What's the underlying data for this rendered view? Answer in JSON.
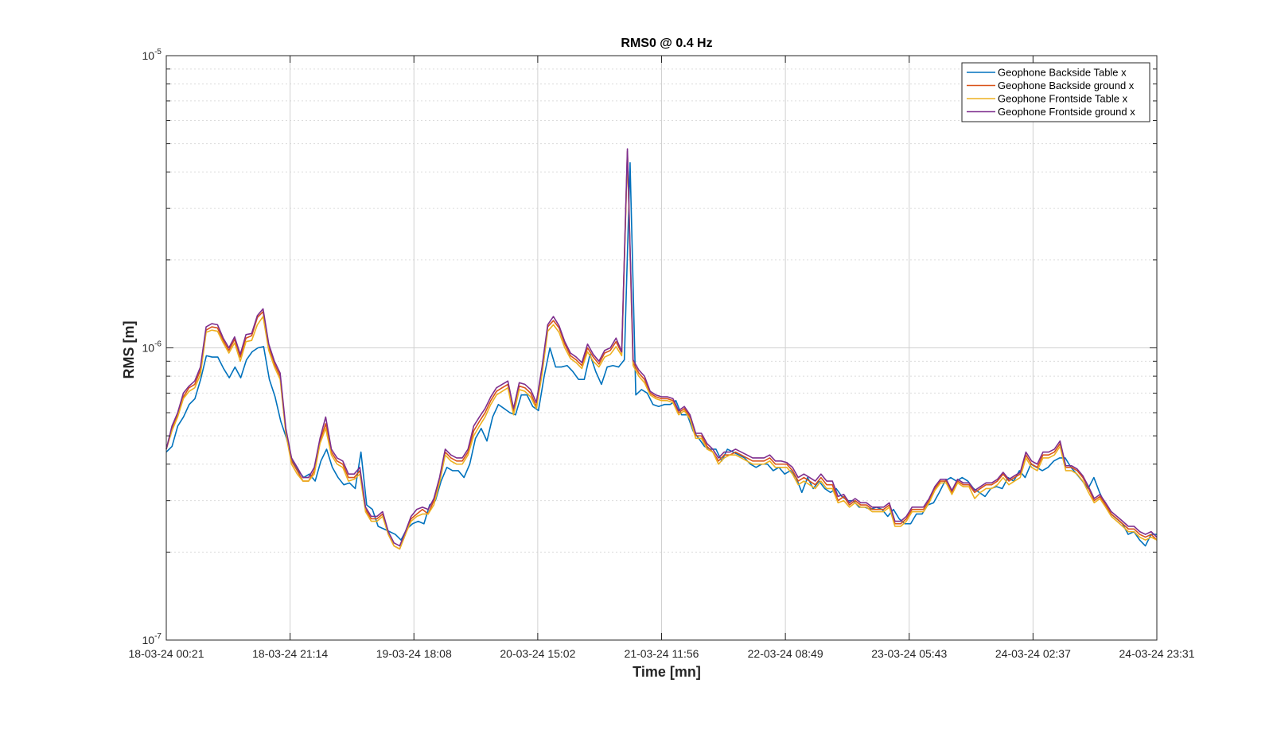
{
  "chart_data": {
    "type": "line",
    "title": "RMS0 @ 0.4 Hz",
    "xlabel": "Time [mn]",
    "ylabel": "RMS [m]",
    "yscale": "log",
    "ylim": [
      1e-07,
      1e-05
    ],
    "y_ticks": [
      {
        "value": 1e-07,
        "base": "10",
        "exp": "-7"
      },
      {
        "value": 1e-06,
        "base": "10",
        "exp": "-6"
      },
      {
        "value": 1e-05,
        "base": "10",
        "exp": "-5"
      }
    ],
    "x_ticks": [
      "18-03-24 00:21",
      "18-03-24 21:14",
      "19-03-24 18:08",
      "20-03-24 15:02",
      "21-03-24 11:56",
      "22-03-24 08:49",
      "23-03-24 05:43",
      "24-03-24 02:37",
      "24-03-24 23:31"
    ],
    "grid": true,
    "minor_grid": true,
    "legend_position": "top-right",
    "series": [
      {
        "name": "Geophone Backside Table x",
        "color": "#0072BD",
        "values": [
          4.4e-07,
          4.6e-07,
          5.4e-07,
          5.8e-07,
          6.4e-07,
          6.7e-07,
          7.8e-07,
          9.4e-07,
          9.3e-07,
          9.3e-07,
          8.5e-07,
          7.9e-07,
          8.6e-07,
          7.9e-07,
          9.1e-07,
          9.7e-07,
          1e-06,
          1.01e-06,
          7.8e-07,
          6.8e-07,
          5.6e-07,
          4.9e-07,
          4.1e-07,
          3.8e-07,
          3.6e-07,
          3.7e-07,
          3.5e-07,
          4.1e-07,
          4.5e-07,
          3.9e-07,
          3.6e-07,
          3.4e-07,
          3.45e-07,
          3.3e-07,
          4.4e-07,
          2.9e-07,
          2.8e-07,
          2.45e-07,
          2.4e-07,
          2.35e-07,
          2.3e-07,
          2.2e-07,
          2.4e-07,
          2.5e-07,
          2.55e-07,
          2.5e-07,
          2.9e-07,
          3e-07,
          3.5e-07,
          3.9e-07,
          3.8e-07,
          3.8e-07,
          3.6e-07,
          4e-07,
          4.9e-07,
          5.3e-07,
          4.8e-07,
          5.8e-07,
          6.4e-07,
          6.2e-07,
          6e-07,
          5.9e-07,
          6.9e-07,
          6.9e-07,
          6.3e-07,
          6.1e-07,
          8e-07,
          1e-06,
          8.6e-07,
          8.6e-07,
          8.7e-07,
          8.3e-07,
          7.8e-07,
          7.8e-07,
          9.5e-07,
          8.3e-07,
          7.5e-07,
          8.6e-07,
          8.7e-07,
          8.6e-07,
          9.1e-07,
          4.3e-06,
          6.9e-07,
          7.2e-07,
          7e-07,
          6.4e-07,
          6.3e-07,
          6.4e-07,
          6.4e-07,
          6.6e-07,
          5.9e-07,
          5.9e-07,
          5.2e-07,
          4.9e-07,
          4.6e-07,
          4.5e-07,
          4.5e-07,
          4.1e-07,
          4.5e-07,
          4.4e-07,
          4.3e-07,
          4.2e-07,
          4e-07,
          3.9e-07,
          4e-07,
          4e-07,
          3.8e-07,
          3.9e-07,
          3.7e-07,
          3.8e-07,
          3.6e-07,
          3.2e-07,
          3.6e-07,
          3.3e-07,
          3.5e-07,
          3.3e-07,
          3.2e-07,
          3.3e-07,
          3.1e-07,
          3e-07,
          3e-07,
          2.85e-07,
          2.85e-07,
          2.8e-07,
          2.85e-07,
          2.8e-07,
          2.65e-07,
          2.8e-07,
          2.6e-07,
          2.5e-07,
          2.5e-07,
          2.7e-07,
          2.7e-07,
          2.9e-07,
          2.95e-07,
          3.2e-07,
          3.5e-07,
          3.6e-07,
          3.5e-07,
          3.6e-07,
          3.5e-07,
          3.3e-07,
          3.2e-07,
          3.1e-07,
          3.3e-07,
          3.35e-07,
          3.3e-07,
          3.6e-07,
          3.5e-07,
          3.8e-07,
          3.6e-07,
          4e-07,
          3.9e-07,
          3.8e-07,
          3.9e-07,
          4.1e-07,
          4.2e-07,
          4.2e-07,
          3.9e-07,
          3.7e-07,
          3.5e-07,
          3.3e-07,
          3.6e-07,
          3.2e-07,
          2.9e-07,
          2.7e-07,
          2.6e-07,
          2.5e-07,
          2.3e-07,
          2.35e-07,
          2.2e-07,
          2.1e-07,
          2.3e-07,
          2.3e-07
        ]
      },
      {
        "name": "Geophone Backside ground x",
        "color": "#D95319",
        "values": [
          4.5e-07,
          5.3e-07,
          5.9e-07,
          6.8e-07,
          7.3e-07,
          7.5e-07,
          8.4e-07,
          1.15e-06,
          1.18e-06,
          1.17e-06,
          1.06e-06,
          9.8e-07,
          1.07e-06,
          9.3e-07,
          1.08e-06,
          1.1e-06,
          1.27e-06,
          1.33e-06,
          1.01e-06,
          8.8e-07,
          8e-07,
          5.2e-07,
          4.1e-07,
          3.8e-07,
          3.5e-07,
          3.5e-07,
          3.8e-07,
          4.8e-07,
          5.5e-07,
          4.4e-07,
          4.1e-07,
          4e-07,
          3.6e-07,
          3.6e-07,
          3.8e-07,
          2.8e-07,
          2.6e-07,
          2.6e-07,
          2.7e-07,
          2.3e-07,
          2.1e-07,
          2.05e-07,
          2.3e-07,
          2.6e-07,
          2.7e-07,
          2.8e-07,
          2.7e-07,
          3e-07,
          3.5e-07,
          4.4e-07,
          4.2e-07,
          4.1e-07,
          4.1e-07,
          4.4e-07,
          5.2e-07,
          5.6e-07,
          6e-07,
          6.6e-07,
          7.1e-07,
          7.3e-07,
          7.5e-07,
          6e-07,
          7.4e-07,
          7.3e-07,
          7e-07,
          6.3e-07,
          8.3e-07,
          1.18e-06,
          1.24e-06,
          1.17e-06,
          1.03e-06,
          9.4e-07,
          9.1e-07,
          8.7e-07,
          1e-06,
          9.3e-07,
          8.8e-07,
          9.6e-07,
          9.8e-07,
          1.05e-06,
          9.6e-07,
          4.7e-06,
          8.9e-07,
          8.2e-07,
          7.8e-07,
          7e-07,
          6.8e-07,
          6.7e-07,
          6.7e-07,
          6.6e-07,
          6e-07,
          6.2e-07,
          5.8e-07,
          5e-07,
          5e-07,
          4.6e-07,
          4.4e-07,
          4.1e-07,
          4.3e-07,
          4.3e-07,
          4.4e-07,
          4.3e-07,
          4.2e-07,
          4.1e-07,
          4.1e-07,
          4.1e-07,
          4.2e-07,
          4e-07,
          4e-07,
          4e-07,
          3.8e-07,
          3.5e-07,
          3.6e-07,
          3.5e-07,
          3.4e-07,
          3.6e-07,
          3.4e-07,
          3.4e-07,
          3e-07,
          3.1e-07,
          2.9e-07,
          3e-07,
          2.9e-07,
          2.9e-07,
          2.8e-07,
          2.8e-07,
          2.8e-07,
          2.9e-07,
          2.5e-07,
          2.5e-07,
          2.6e-07,
          2.8e-07,
          2.8e-07,
          2.8e-07,
          3e-07,
          3.3e-07,
          3.5e-07,
          3.5e-07,
          3.2e-07,
          3.5e-07,
          3.4e-07,
          3.4e-07,
          3.2e-07,
          3.3e-07,
          3.4e-07,
          3.4e-07,
          3.5e-07,
          3.7e-07,
          3.5e-07,
          3.6e-07,
          3.7e-07,
          4.3e-07,
          4e-07,
          3.9e-07,
          4.3e-07,
          4.3e-07,
          4.4e-07,
          4.7e-07,
          3.9e-07,
          3.9e-07,
          3.8e-07,
          3.6e-07,
          3.3e-07,
          3e-07,
          3.1e-07,
          2.9e-07,
          2.7e-07,
          2.6e-07,
          2.5e-07,
          2.4e-07,
          2.4e-07,
          2.3e-07,
          2.25e-07,
          2.3e-07,
          2.2e-07
        ]
      },
      {
        "name": "Geophone Frontside Table x",
        "color": "#EDB120",
        "values": [
          4.5e-07,
          5.2e-07,
          5.8e-07,
          6.7e-07,
          7.1e-07,
          7.3e-07,
          8.1e-07,
          1.13e-06,
          1.15e-06,
          1.14e-06,
          1.04e-06,
          9.6e-07,
          1.04e-06,
          9e-07,
          1.05e-06,
          1.06e-06,
          1.2e-06,
          1.28e-06,
          9.8e-07,
          8.6e-07,
          7.8e-07,
          5.1e-07,
          4e-07,
          3.7e-07,
          3.5e-07,
          3.5e-07,
          3.7e-07,
          4.7e-07,
          5.3e-07,
          4.3e-07,
          4e-07,
          3.9e-07,
          3.5e-07,
          3.55e-07,
          3.7e-07,
          2.75e-07,
          2.55e-07,
          2.55e-07,
          2.65e-07,
          2.3e-07,
          2.1e-07,
          2.05e-07,
          2.3e-07,
          2.55e-07,
          2.65e-07,
          2.7e-07,
          2.7e-07,
          2.9e-07,
          3.45e-07,
          4.3e-07,
          4.1e-07,
          4e-07,
          4e-07,
          4.3e-07,
          5e-07,
          5.4e-07,
          5.8e-07,
          6.4e-07,
          6.9e-07,
          7.1e-07,
          7.3e-07,
          5.9e-07,
          7.2e-07,
          7.1e-07,
          6.8e-07,
          6.2e-07,
          8.1e-07,
          1.14e-06,
          1.2e-06,
          1.13e-06,
          1e-06,
          9.2e-07,
          8.9e-07,
          8.5e-07,
          9.7e-07,
          9e-07,
          8.6e-07,
          9.3e-07,
          9.5e-07,
          1.01e-06,
          9.4e-07,
          4.6e-06,
          8.7e-07,
          8e-07,
          7.6e-07,
          6.9e-07,
          6.7e-07,
          6.6e-07,
          6.6e-07,
          6.5e-07,
          5.9e-07,
          6.1e-07,
          5.7e-07,
          4.9e-07,
          4.9e-07,
          4.5e-07,
          4.4e-07,
          4e-07,
          4.2e-07,
          4.3e-07,
          4.3e-07,
          4.2e-07,
          4.1e-07,
          4e-07,
          4e-07,
          4e-07,
          4.1e-07,
          3.9e-07,
          3.9e-07,
          3.9e-07,
          3.7e-07,
          3.4e-07,
          3.5e-07,
          3.4e-07,
          3.3e-07,
          3.5e-07,
          3.3e-07,
          3.3e-07,
          2.95e-07,
          3e-07,
          2.85e-07,
          2.95e-07,
          2.85e-07,
          2.85e-07,
          2.75e-07,
          2.75e-07,
          2.75e-07,
          2.85e-07,
          2.45e-07,
          2.45e-07,
          2.55e-07,
          2.75e-07,
          2.75e-07,
          2.75e-07,
          2.95e-07,
          3.25e-07,
          3.45e-07,
          3.45e-07,
          3.15e-07,
          3.45e-07,
          3.35e-07,
          3.35e-07,
          3.05e-07,
          3.2e-07,
          3.3e-07,
          3.3e-07,
          3.4e-07,
          3.6e-07,
          3.4e-07,
          3.5e-07,
          3.6e-07,
          4.2e-07,
          3.9e-07,
          3.8e-07,
          4.2e-07,
          4.2e-07,
          4.3e-07,
          4.6e-07,
          3.8e-07,
          3.8e-07,
          3.7e-07,
          3.5e-07,
          3.2e-07,
          2.95e-07,
          3.05e-07,
          2.85e-07,
          2.65e-07,
          2.55e-07,
          2.45e-07,
          2.35e-07,
          2.35e-07,
          2.25e-07,
          2.2e-07,
          2.25e-07,
          2.2e-07
        ]
      },
      {
        "name": "Geophone Frontside ground x",
        "color": "#7E2F8E",
        "values": [
          4.5e-07,
          5.4e-07,
          6e-07,
          7e-07,
          7.4e-07,
          7.7e-07,
          8.6e-07,
          1.18e-06,
          1.21e-06,
          1.2e-06,
          1.08e-06,
          1e-06,
          1.09e-06,
          9.5e-07,
          1.11e-06,
          1.12e-06,
          1.29e-06,
          1.36e-06,
          1.03e-06,
          9e-07,
          8.2e-07,
          5.3e-07,
          4.2e-07,
          3.9e-07,
          3.6e-07,
          3.6e-07,
          3.9e-07,
          4.9e-07,
          5.8e-07,
          4.5e-07,
          4.2e-07,
          4.1e-07,
          3.7e-07,
          3.7e-07,
          3.9e-07,
          2.85e-07,
          2.65e-07,
          2.65e-07,
          2.75e-07,
          2.35e-07,
          2.15e-07,
          2.1e-07,
          2.35e-07,
          2.65e-07,
          2.8e-07,
          2.85e-07,
          2.8e-07,
          3.05e-07,
          3.6e-07,
          4.5e-07,
          4.3e-07,
          4.2e-07,
          4.2e-07,
          4.5e-07,
          5.4e-07,
          5.8e-07,
          6.2e-07,
          6.8e-07,
          7.3e-07,
          7.5e-07,
          7.7e-07,
          6.2e-07,
          7.6e-07,
          7.5e-07,
          7.2e-07,
          6.5e-07,
          8.6e-07,
          1.2e-06,
          1.28e-06,
          1.19e-06,
          1.05e-06,
          9.6e-07,
          9.3e-07,
          8.9e-07,
          1.03e-06,
          9.5e-07,
          9e-07,
          9.8e-07,
          1e-06,
          1.08e-06,
          9.7e-07,
          4.8e-06,
          9.1e-07,
          8.4e-07,
          8e-07,
          7.1e-07,
          6.9e-07,
          6.8e-07,
          6.8e-07,
          6.7e-07,
          6.1e-07,
          6.3e-07,
          5.9e-07,
          5.1e-07,
          5.1e-07,
          4.7e-07,
          4.5e-07,
          4.2e-07,
          4.4e-07,
          4.4e-07,
          4.5e-07,
          4.4e-07,
          4.3e-07,
          4.2e-07,
          4.2e-07,
          4.2e-07,
          4.3e-07,
          4.1e-07,
          4.1e-07,
          4.05e-07,
          3.9e-07,
          3.6e-07,
          3.7e-07,
          3.6e-07,
          3.5e-07,
          3.7e-07,
          3.5e-07,
          3.5e-07,
          3.1e-07,
          3.15e-07,
          2.95e-07,
          3.05e-07,
          2.95e-07,
          2.95e-07,
          2.85e-07,
          2.85e-07,
          2.85e-07,
          2.95e-07,
          2.55e-07,
          2.55e-07,
          2.65e-07,
          2.85e-07,
          2.85e-07,
          2.85e-07,
          3.05e-07,
          3.35e-07,
          3.55e-07,
          3.55e-07,
          3.25e-07,
          3.55e-07,
          3.45e-07,
          3.45e-07,
          3.25e-07,
          3.35e-07,
          3.45e-07,
          3.45e-07,
          3.55e-07,
          3.75e-07,
          3.55e-07,
          3.65e-07,
          3.75e-07,
          4.4e-07,
          4.1e-07,
          4e-07,
          4.4e-07,
          4.4e-07,
          4.5e-07,
          4.8e-07,
          3.95e-07,
          3.95e-07,
          3.85e-07,
          3.65e-07,
          3.35e-07,
          3.05e-07,
          3.15e-07,
          2.95e-07,
          2.75e-07,
          2.65e-07,
          2.55e-07,
          2.45e-07,
          2.45e-07,
          2.35e-07,
          2.3e-07,
          2.35e-07,
          2.25e-07
        ]
      }
    ]
  }
}
